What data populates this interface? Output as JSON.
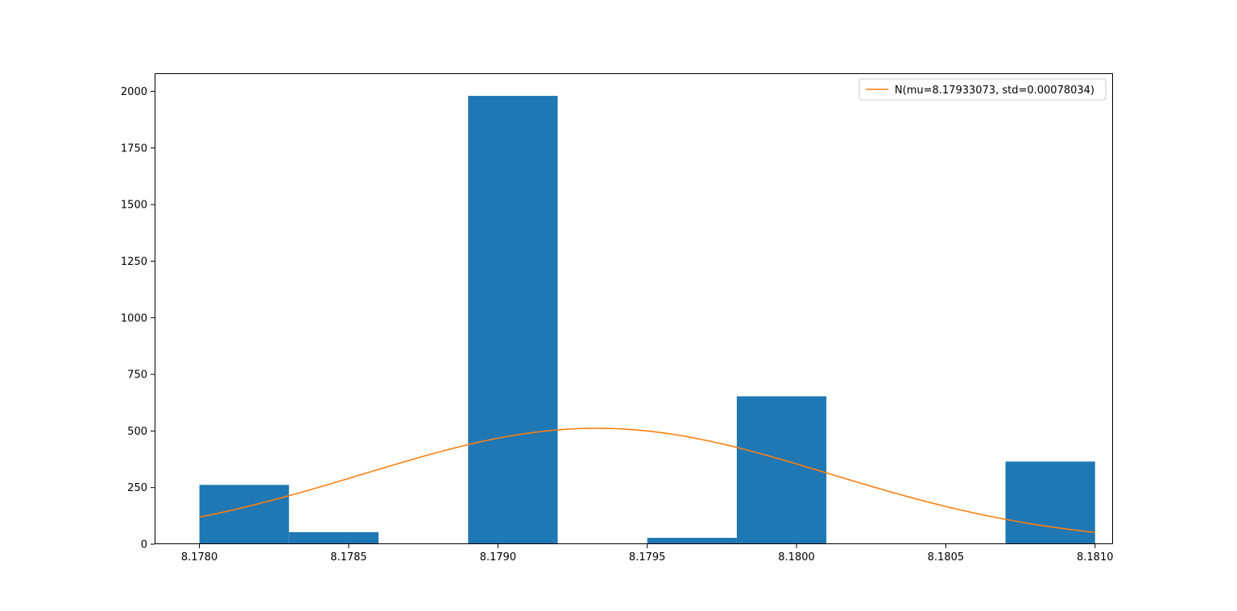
{
  "chart_data": {
    "type": "bar",
    "title": "",
    "xlabel": "",
    "ylabel": "",
    "xlim": [
      8.17785,
      8.18106
    ],
    "ylim": [
      0,
      2080
    ],
    "grid": false,
    "legend_placement": "top-right",
    "bar_color": "#1f77b4",
    "line_color": "#ff7f0e",
    "x_ticks": [
      {
        "value": 8.178,
        "label": "8.1780"
      },
      {
        "value": 8.1785,
        "label": "8.1785"
      },
      {
        "value": 8.179,
        "label": "8.1790"
      },
      {
        "value": 8.1795,
        "label": "8.1795"
      },
      {
        "value": 8.18,
        "label": "8.1800"
      },
      {
        "value": 8.1805,
        "label": "8.1805"
      },
      {
        "value": 8.181,
        "label": "8.1810"
      }
    ],
    "y_ticks": [
      {
        "value": 0,
        "label": "0"
      },
      {
        "value": 250,
        "label": "250"
      },
      {
        "value": 500,
        "label": "500"
      },
      {
        "value": 750,
        "label": "750"
      },
      {
        "value": 1000,
        "label": "1000"
      },
      {
        "value": 1250,
        "label": "1250"
      },
      {
        "value": 1500,
        "label": "1500"
      },
      {
        "value": 1750,
        "label": "1750"
      },
      {
        "value": 2000,
        "label": "2000"
      }
    ],
    "histogram": {
      "name": "",
      "bins": [
        {
          "x0": 8.178,
          "x1": 8.1783,
          "count": 262
        },
        {
          "x0": 8.1783,
          "x1": 8.1786,
          "count": 53
        },
        {
          "x0": 8.1786,
          "x1": 8.1789,
          "count": 0
        },
        {
          "x0": 8.1789,
          "x1": 8.1792,
          "count": 1980
        },
        {
          "x0": 8.1792,
          "x1": 8.1795,
          "count": 0
        },
        {
          "x0": 8.1795,
          "x1": 8.1798,
          "count": 28
        },
        {
          "x0": 8.1798,
          "x1": 8.1801,
          "count": 653
        },
        {
          "x0": 8.1801,
          "x1": 8.1804,
          "count": 0
        },
        {
          "x0": 8.1804,
          "x1": 8.1807,
          "count": 0
        },
        {
          "x0": 8.1807,
          "x1": 8.181,
          "count": 365
        }
      ]
    },
    "fit_curve": {
      "name": "N(mu=8.17933073, std=0.00078034)",
      "mu": 8.17933073,
      "std": 0.00078034,
      "peak": 512,
      "x_range": [
        8.178,
        8.181
      ]
    }
  }
}
